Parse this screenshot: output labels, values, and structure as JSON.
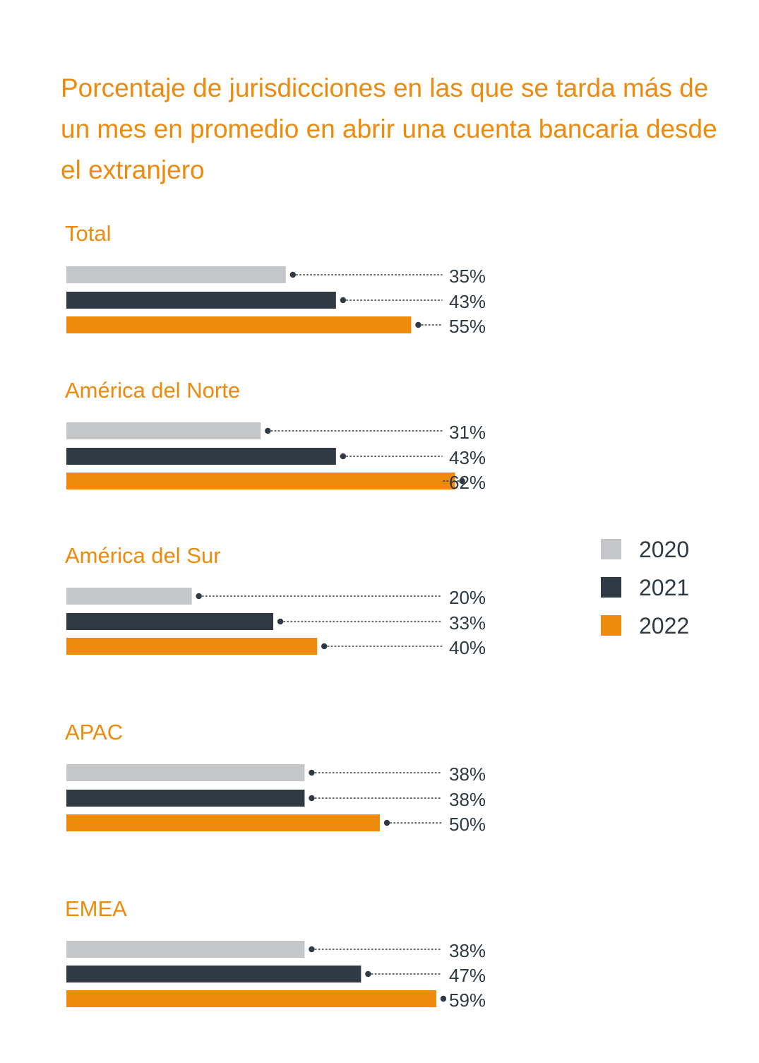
{
  "chart_data": {
    "type": "bar",
    "orientation": "horizontal",
    "title": "Porcentaje de jurisdicciones en las que se tarda más de un mes en promedio en abrir una cuenta bancaria desde el extranjero",
    "categories": [
      "Total",
      "América del Norte",
      "América del Sur",
      "APAC",
      "EMEA"
    ],
    "series": [
      {
        "name": "2020",
        "color": "#c4c6c8",
        "values": [
          35,
          31,
          20,
          38,
          38
        ]
      },
      {
        "name": "2021",
        "color": "#2f3a44",
        "values": [
          43,
          43,
          33,
          38,
          47
        ]
      },
      {
        "name": "2022",
        "color": "#ee8a0c",
        "values": [
          55,
          62,
          40,
          50,
          59
        ]
      }
    ],
    "value_suffix": "%",
    "xlim": [
      0,
      100
    ],
    "grid": false,
    "legend_position": "right"
  }
}
